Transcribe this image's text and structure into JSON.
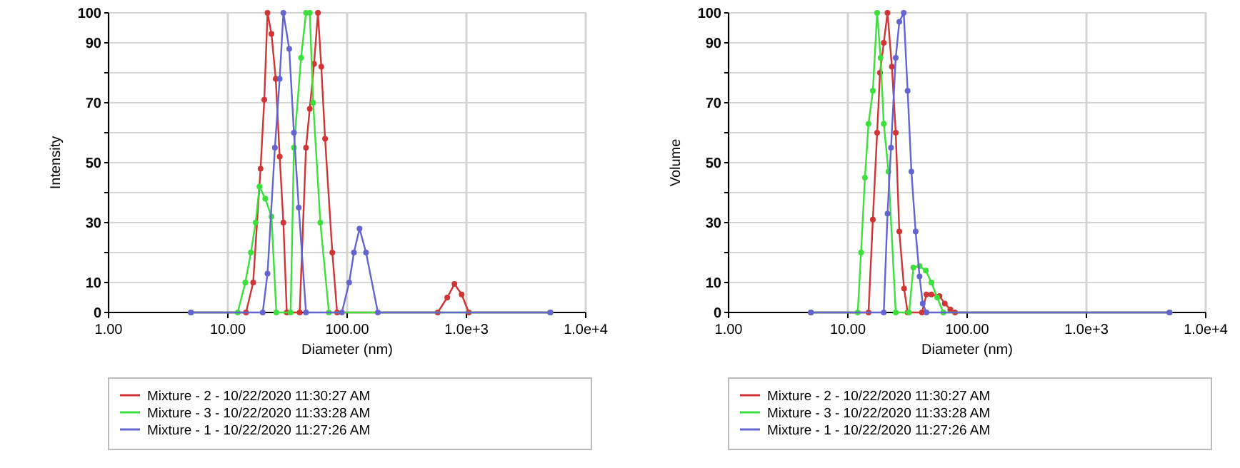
{
  "chart_data": [
    {
      "type": "line",
      "xlabel": "Diameter (nm)",
      "ylabel": "Intensity",
      "log": "x",
      "xlim": [
        1,
        10000
      ],
      "xticks": [
        {
          "value": 1,
          "label": "1.00"
        },
        {
          "value": 10,
          "label": "10.00"
        },
        {
          "value": 100,
          "label": "100.00"
        },
        {
          "value": 1000,
          "label": "1.0e+3"
        },
        {
          "value": 10000,
          "label": "1.0e+4"
        }
      ],
      "ylim": [
        0,
        100
      ],
      "yticks": [
        0,
        10,
        {
          "value": 20,
          "label": null
        },
        30,
        {
          "value": 40,
          "label": null
        },
        50,
        {
          "value": 60,
          "label": null
        },
        70,
        {
          "value": 80,
          "label": null
        },
        90,
        100
      ],
      "grid": true,
      "legend": "bottom",
      "marker": "circle",
      "line_style": "solid",
      "series": [
        {
          "name": "Mixture - 2 - 10/22/2020 11:30:27 AM",
          "color": "#d03434",
          "x": [
            4.9,
            14.2,
            16.3,
            18.8,
            20.2,
            21.5,
            23.2,
            25.2,
            27.2,
            29.2,
            31.2,
            40,
            45.2,
            48.6,
            52.8,
            56.9,
            60.7,
            65.3,
            75.1,
            82.4,
            574,
            691,
            794,
            912,
            1047,
            5050
          ],
          "values": [
            0,
            0,
            10,
            48,
            71,
            100,
            93,
            78,
            52,
            30,
            0,
            0,
            55,
            68,
            83,
            100,
            82,
            58,
            20,
            0,
            0,
            5,
            9.5,
            6,
            0,
            0
          ]
        },
        {
          "name": "Mixture - 3 - 10/22/2020 11:33:28 AM",
          "color": "#3ce03c",
          "x": [
            4.9,
            12.1,
            14,
            15.6,
            17.1,
            18.4,
            20.6,
            23.2,
            25.5,
            33.6,
            35.8,
            41.1,
            45.2,
            48.6,
            51.9,
            59.6,
            70.3,
            5050
          ],
          "values": [
            0,
            0,
            10,
            20,
            30,
            42,
            38,
            32,
            0,
            0,
            55,
            85,
            100,
            100,
            70,
            30,
            0,
            0
          ]
        },
        {
          "name": "Mixture - 1 - 10/22/2020 11:27:26 AM",
          "color": "#6464d0",
          "x": [
            4.9,
            19.6,
            21.5,
            24.8,
            27.2,
            29.2,
            32.7,
            35.8,
            39.3,
            45.2,
            90.3,
            104,
            114,
            127,
            144,
            181,
            5050
          ],
          "values": [
            0,
            0,
            13,
            55,
            78,
            100,
            88,
            60,
            35,
            0,
            0,
            10,
            20,
            28,
            20,
            0,
            0
          ]
        }
      ]
    },
    {
      "type": "line",
      "xlabel": "Diameter (nm)",
      "ylabel": "Volume",
      "log": "x",
      "xlim": [
        1,
        10000
      ],
      "xticks": [
        {
          "value": 1,
          "label": "1.00"
        },
        {
          "value": 10,
          "label": "10.00"
        },
        {
          "value": 100,
          "label": "100.00"
        },
        {
          "value": 1000,
          "label": "1.0e+3"
        },
        {
          "value": 10000,
          "label": "1.0e+4"
        }
      ],
      "ylim": [
        0,
        100
      ],
      "yticks": [
        0,
        10,
        {
          "value": 20,
          "label": null
        },
        30,
        {
          "value": 40,
          "label": null
        },
        50,
        {
          "value": 60,
          "label": null
        },
        70,
        {
          "value": 80,
          "label": null
        },
        90,
        100
      ],
      "grid": true,
      "legend": "bottom",
      "marker": "circle",
      "line_style": "solid",
      "series": [
        {
          "name": "Mixture - 2 - 10/22/2020 11:30:27 AM",
          "color": "#d03434",
          "x": [
            4.9,
            14.9,
            16.2,
            17.6,
            18.6,
            20,
            21.5,
            23.4,
            25.2,
            27,
            29.6,
            31.7,
            41.8,
            45.6,
            50.2,
            58.5,
            65,
            72.3,
            79.2,
            4970
          ],
          "values": [
            0,
            0,
            31,
            60,
            80,
            90,
            100,
            82,
            60,
            27,
            8,
            0,
            0,
            6,
            6,
            5.5,
            3,
            1,
            0,
            0
          ]
        },
        {
          "name": "Mixture - 3 - 10/22/2020 11:33:28 AM",
          "color": "#3ce03c",
          "x": [
            4.9,
            12.1,
            12.9,
            13.9,
            14.9,
            16.2,
            17.6,
            18.8,
            20,
            21.9,
            25.2,
            32.6,
            35.4,
            39.9,
            45,
            50.2,
            56.1,
            63.1,
            4970
          ],
          "values": [
            0,
            0,
            20,
            45,
            63,
            74,
            100,
            85,
            63,
            47,
            0,
            0,
            15,
            15.5,
            14,
            10,
            5,
            0,
            0
          ]
        },
        {
          "name": "Mixture - 1 - 10/22/2020 11:27:26 AM",
          "color": "#6464d0",
          "x": [
            4.9,
            20,
            21.5,
            23,
            25.2,
            27,
            29.4,
            31.7,
            34.1,
            37,
            39.9,
            42.4,
            45.6,
            4970
          ],
          "values": [
            0,
            0,
            33,
            55,
            85,
            97,
            100,
            74,
            47,
            27,
            12,
            3,
            0,
            0
          ]
        }
      ]
    }
  ]
}
